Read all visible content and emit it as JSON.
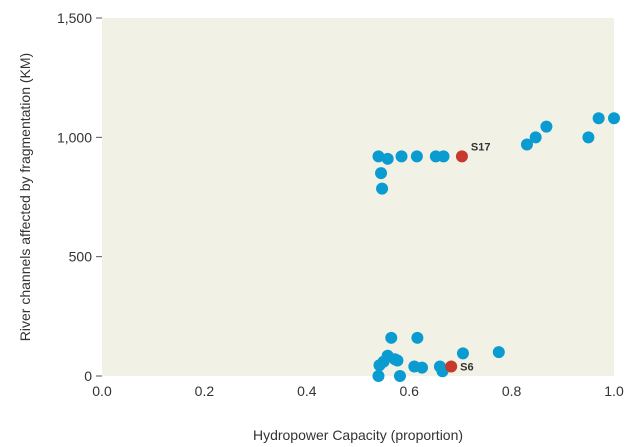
{
  "chart_data": {
    "type": "scatter",
    "xlabel": "Hydropower Capacity (proportion)",
    "ylabel": "River channels affected by fragmentation (KM)",
    "xlim": [
      0.0,
      1.0
    ],
    "ylim": [
      0,
      1500
    ],
    "x_ticks": [
      0.0,
      0.2,
      0.4,
      0.6,
      0.8,
      1.0
    ],
    "x_tick_labels": [
      "0.0",
      "0.2",
      "0.4",
      "0.6",
      "0.8",
      "1.0"
    ],
    "y_ticks": [
      0,
      500,
      1000,
      1500
    ],
    "y_tick_labels": [
      "0",
      "500",
      "1,000",
      "1,500"
    ],
    "grid": false,
    "colors": {
      "plot_background": "#f2f1e6",
      "series": "#0a9cd0",
      "highlight": "#c8392b"
    },
    "series": [
      {
        "points": [
          {
            "x": 0.54,
            "y": 920
          },
          {
            "x": 0.545,
            "y": 850
          },
          {
            "x": 0.547,
            "y": 785
          },
          {
            "x": 0.558,
            "y": 910
          },
          {
            "x": 0.585,
            "y": 920
          },
          {
            "x": 0.615,
            "y": 920
          },
          {
            "x": 0.652,
            "y": 920
          },
          {
            "x": 0.667,
            "y": 920
          },
          {
            "x": 0.83,
            "y": 970
          },
          {
            "x": 0.847,
            "y": 1000
          },
          {
            "x": 0.868,
            "y": 1045
          },
          {
            "x": 0.95,
            "y": 1000
          },
          {
            "x": 0.97,
            "y": 1080
          },
          {
            "x": 1.0,
            "y": 1080
          },
          {
            "x": 0.542,
            "y": 45
          },
          {
            "x": 0.55,
            "y": 60
          },
          {
            "x": 0.558,
            "y": 85
          },
          {
            "x": 0.565,
            "y": 160
          },
          {
            "x": 0.572,
            "y": 70
          },
          {
            "x": 0.577,
            "y": 65
          },
          {
            "x": 0.582,
            "y": 0
          },
          {
            "x": 0.54,
            "y": 0
          },
          {
            "x": 0.61,
            "y": 40
          },
          {
            "x": 0.616,
            "y": 160
          },
          {
            "x": 0.625,
            "y": 35
          },
          {
            "x": 0.66,
            "y": 40
          },
          {
            "x": 0.665,
            "y": 20
          },
          {
            "x": 0.705,
            "y": 95
          },
          {
            "x": 0.775,
            "y": 100
          }
        ]
      },
      {
        "highlight": true,
        "points": [
          {
            "x": 0.703,
            "y": 920,
            "label": "S17"
          },
          {
            "x": 0.682,
            "y": 40,
            "label": "S6"
          }
        ]
      }
    ]
  }
}
